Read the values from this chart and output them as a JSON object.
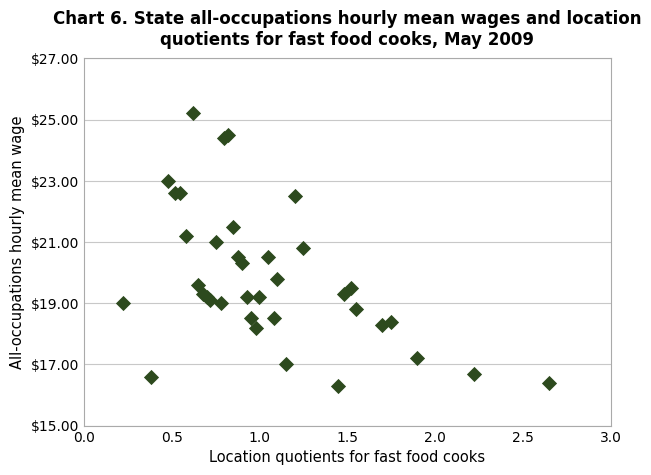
{
  "title": "Chart 6. State all-occupations hourly mean wages and location\nquotients for fast food cooks, May 2009",
  "xlabel": "Location quotients for fast food cooks",
  "ylabel": "All-occupations hourly mean wage",
  "xlim": [
    0.0,
    3.0
  ],
  "ylim": [
    15.0,
    27.0
  ],
  "xticks": [
    0.0,
    0.5,
    1.0,
    1.5,
    2.0,
    2.5,
    3.0
  ],
  "yticks": [
    15.0,
    17.0,
    19.0,
    21.0,
    23.0,
    25.0,
    27.0
  ],
  "marker_color": "#2d4a1e",
  "scatter_x": [
    0.22,
    0.38,
    0.48,
    0.52,
    0.55,
    0.58,
    0.62,
    0.65,
    0.68,
    0.7,
    0.72,
    0.75,
    0.78,
    0.8,
    0.82,
    0.85,
    0.88,
    0.9,
    0.93,
    0.95,
    0.98,
    1.0,
    1.05,
    1.08,
    1.1,
    1.15,
    1.2,
    1.25,
    1.45,
    1.48,
    1.52,
    1.55,
    1.7,
    1.75,
    1.9,
    2.22,
    2.65
  ],
  "scatter_y": [
    19.0,
    16.6,
    23.0,
    22.6,
    22.6,
    21.2,
    25.2,
    19.6,
    19.3,
    19.2,
    19.1,
    21.0,
    19.0,
    24.4,
    24.5,
    21.5,
    20.5,
    20.3,
    19.2,
    18.5,
    18.2,
    19.2,
    20.5,
    18.5,
    19.8,
    17.0,
    22.5,
    20.8,
    16.3,
    19.3,
    19.5,
    18.8,
    18.3,
    18.4,
    17.2,
    16.7,
    16.4
  ],
  "background_color": "#ffffff",
  "grid_color": "#c8c8c8",
  "spine_color": "#aaaaaa",
  "title_fontsize": 12,
  "axis_fontsize": 10.5,
  "tick_fontsize": 10
}
